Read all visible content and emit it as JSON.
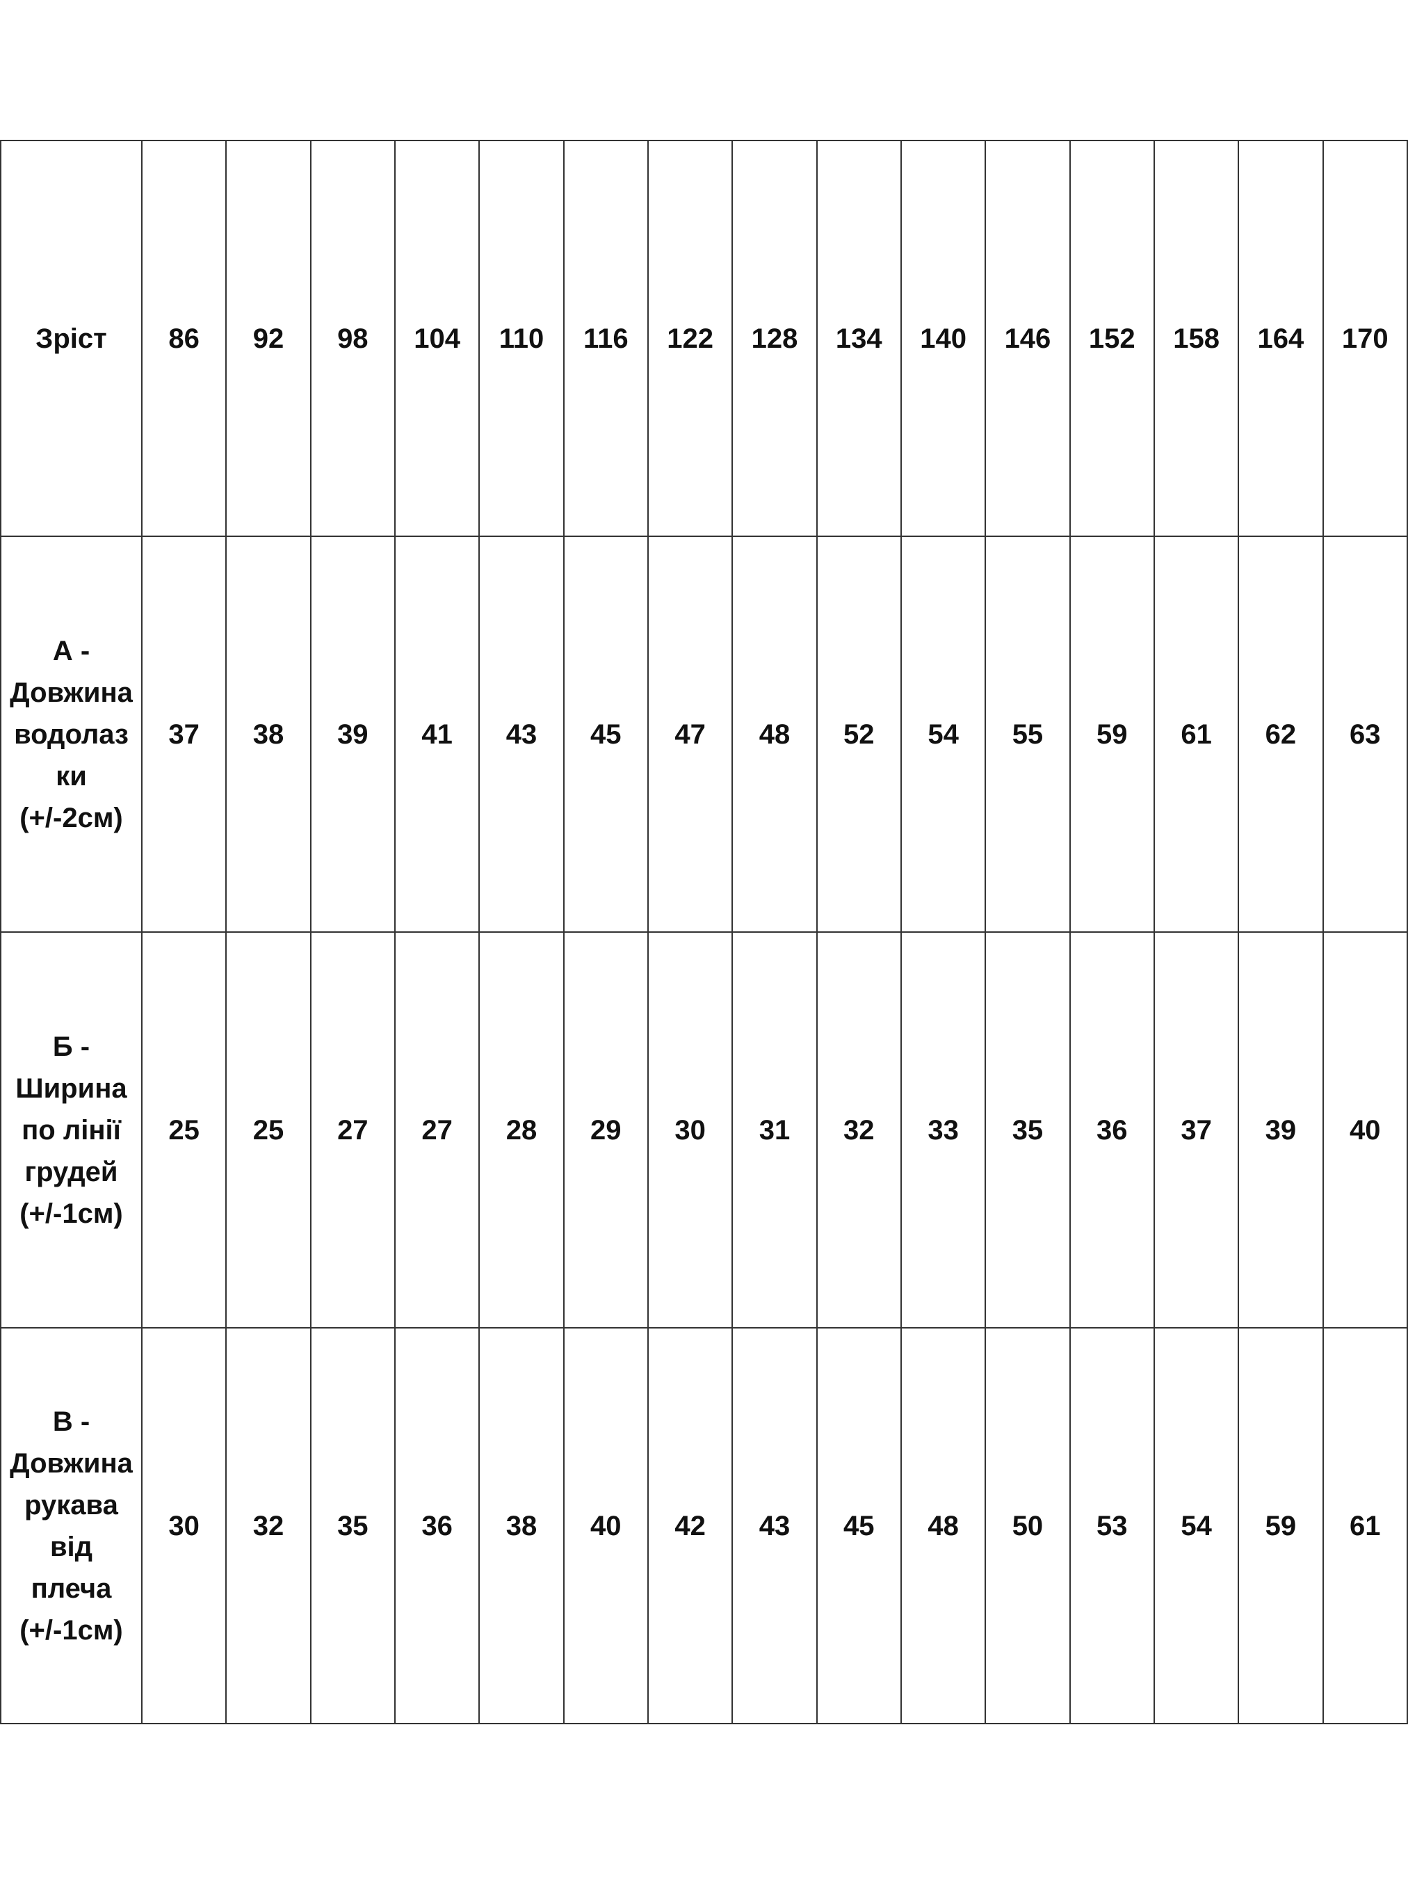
{
  "table": {
    "rows": [
      {
        "label": "Зріст",
        "values": [
          "86",
          "92",
          "98",
          "104",
          "110",
          "116",
          "122",
          "128",
          "134",
          "140",
          "146",
          "152",
          "158",
          "164",
          "170"
        ]
      },
      {
        "label": "А - Довжина водолаз ки (+/-2см)",
        "label_lines": [
          "А -",
          "Довжина",
          "водолаз",
          "ки",
          "(+/-2см)"
        ],
        "values": [
          "37",
          "38",
          "39",
          "41",
          "43",
          "45",
          "47",
          "48",
          "52",
          "54",
          "55",
          "59",
          "61",
          "62",
          "63"
        ]
      },
      {
        "label": "Б - Ширина по лінії грудей (+/-1см)",
        "label_lines": [
          "Б -",
          "Ширина",
          "по лінії",
          "грудей",
          "(+/-1см)"
        ],
        "values": [
          "25",
          "25",
          "27",
          "27",
          "28",
          "29",
          "30",
          "31",
          "32",
          "33",
          "35",
          "36",
          "37",
          "39",
          "40"
        ]
      },
      {
        "label": "В - Довжина рукава від плеча (+/-1см)",
        "label_lines": [
          "В -",
          "Довжина",
          "рукава",
          "від",
          "плеча",
          "(+/-1см)"
        ],
        "values": [
          "30",
          "32",
          "35",
          "36",
          "38",
          "40",
          "42",
          "43",
          "45",
          "48",
          "50",
          "53",
          "54",
          "59",
          "61"
        ]
      }
    ]
  }
}
